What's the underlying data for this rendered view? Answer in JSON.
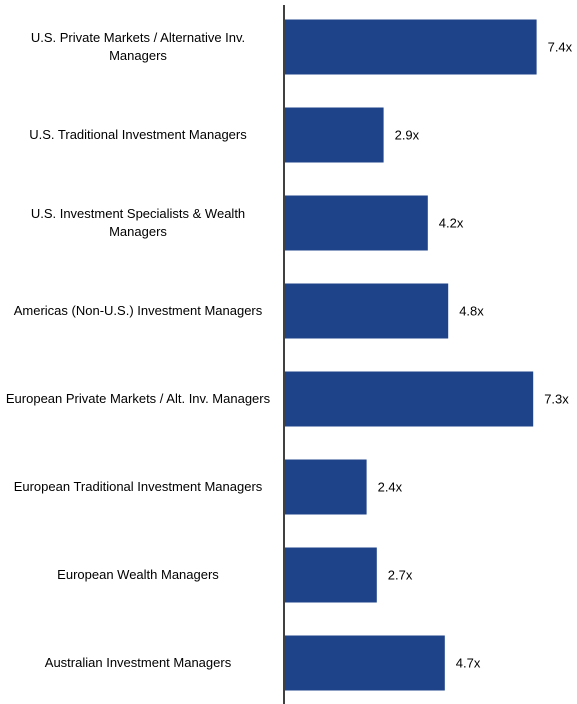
{
  "chart_data": {
    "type": "bar",
    "orientation": "horizontal",
    "categories": [
      "U.S. Private Markets / Alternative Inv. Managers",
      "U.S. Traditional Investment Managers",
      "U.S. Investment Specialists & Wealth Managers",
      "Americas (Non-U.S.) Investment Managers",
      "European Private Markets / Alt. Inv. Managers",
      "European Traditional Investment Managers",
      "European Wealth Managers",
      "Australian Investment Managers"
    ],
    "values": [
      7.4,
      2.9,
      4.2,
      4.8,
      7.3,
      2.4,
      2.7,
      4.7
    ],
    "value_labels": [
      "7.4x",
      "2.9x",
      "4.2x",
      "4.8x",
      "7.3x",
      "2.4x",
      "2.7x",
      "4.7x"
    ],
    "color": "#1f4389"
  }
}
